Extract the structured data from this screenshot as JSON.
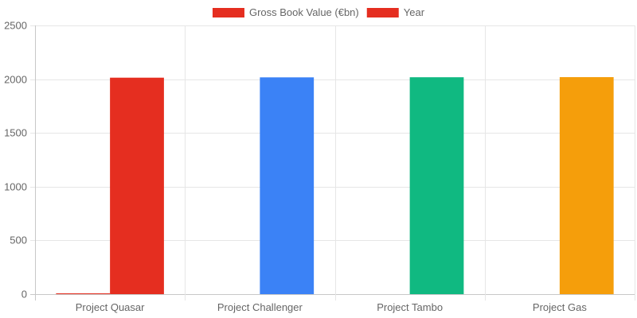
{
  "chart_data": {
    "type": "bar",
    "categories": [
      "Project Quasar",
      "Project Challenger",
      "Project Tambo",
      "Project Gas"
    ],
    "series": [
      {
        "name": "Gross Book Value (€bn)",
        "values": [
          7.5,
          0.0,
          0.0,
          0.0
        ],
        "legend_color": "#e52e20",
        "colors": [
          "#e52e20",
          "#3b82f6",
          "#10b981",
          "#f59e0b"
        ]
      },
      {
        "name": "Year",
        "values": [
          2014,
          2017,
          2018,
          2019
        ],
        "legend_color": "#e52e20",
        "colors": [
          "#e52e20",
          "#3b82f6",
          "#10b981",
          "#f59e0b"
        ]
      }
    ],
    "yticks": [
      "0",
      "500",
      "1000",
      "1500",
      "2000",
      "2500"
    ],
    "ylim": [
      0,
      2500
    ],
    "grid": true,
    "legend": "top-center"
  }
}
